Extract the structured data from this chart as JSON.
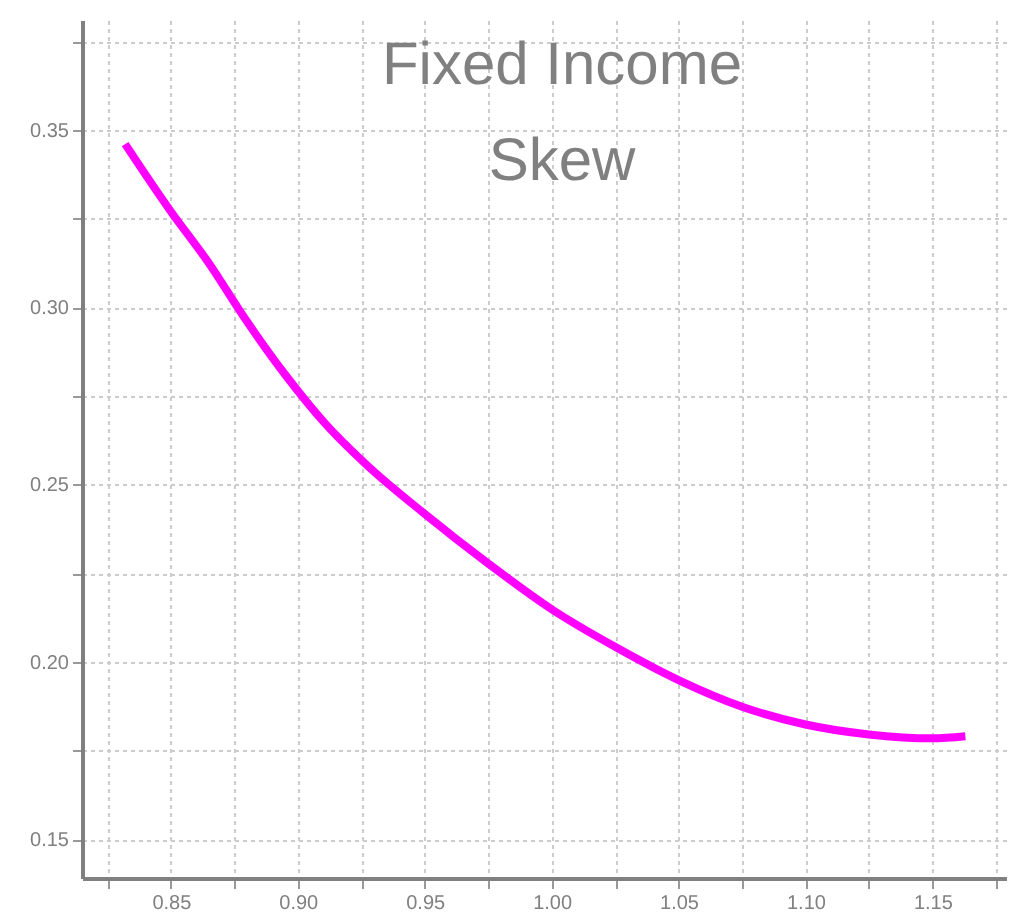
{
  "chart_data": {
    "type": "line",
    "title": "Fixed Income\nSkew",
    "x": [
      0.832,
      0.85,
      0.865,
      0.879,
      0.895,
      0.911,
      0.927,
      0.95,
      0.975,
      1.0,
      1.025,
      1.0506,
      1.075,
      1.1,
      1.125,
      1.15,
      1.163
    ],
    "series": [
      {
        "color": "#ff00ff",
        "values": [
          0.346,
          0.327,
          0.3124,
          0.297,
          0.281,
          0.267,
          0.2556,
          0.2417,
          0.2277,
          0.2148,
          0.2042,
          0.1946,
          0.1873,
          0.1823,
          0.1795,
          0.1784,
          0.179
        ]
      }
    ],
    "xlim": [
      0.815,
      1.179
    ],
    "xticks": [
      {
        "value": 0.825,
        "label": null
      },
      0.85,
      {
        "value": 0.875,
        "label": null
      },
      {
        "value": 0.9,
        "label": "0.90"
      },
      {
        "value": 0.925,
        "label": null
      },
      0.95,
      {
        "value": 0.975,
        "label": null
      },
      {
        "value": 1.0,
        "label": "1.00"
      },
      {
        "value": 1.025,
        "label": null
      },
      1.05,
      {
        "value": 1.075,
        "label": null
      },
      {
        "value": 1.1,
        "label": "1.10"
      },
      {
        "value": 1.125,
        "label": null
      },
      1.15,
      {
        "value": 1.175,
        "label": null
      }
    ],
    "ylim": [
      0.139,
      0.381
    ],
    "yticks": [
      0.15,
      {
        "value": 0.175,
        "label": null
      },
      {
        "value": 0.2,
        "label": "0.20"
      },
      {
        "value": 0.225,
        "label": null
      },
      0.25,
      {
        "value": 0.275,
        "label": null
      },
      {
        "value": 0.3,
        "label": "0.30"
      },
      {
        "value": 0.325,
        "label": null
      },
      0.35,
      {
        "value": 0.375,
        "label": null
      }
    ],
    "grid": true,
    "line_style": "solid",
    "marker": "none"
  }
}
